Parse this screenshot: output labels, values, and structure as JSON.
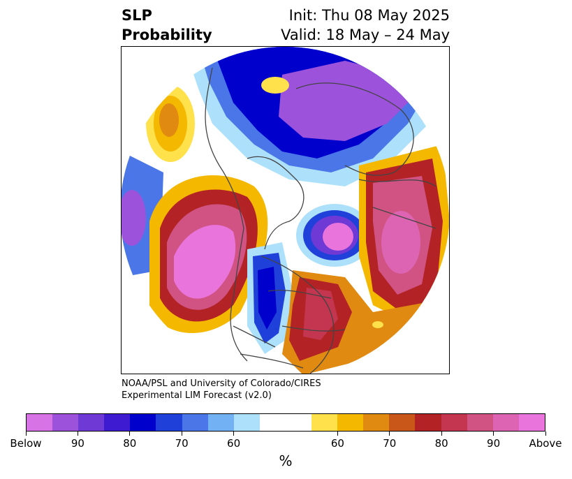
{
  "title": {
    "left_line1": "SLP",
    "left_line2": "Probability",
    "right_line1": "Init: Thu 08 May 2025",
    "right_line2": "Valid: 18 May – 24 May"
  },
  "credits": {
    "line1": "NOAA/PSL and University of Colorado/CIRES",
    "line2": "Experimental LIM Forecast (v2.0)"
  },
  "colorbar": {
    "units": "%",
    "labels": [
      "Below",
      "90",
      "80",
      "70",
      "60",
      "60",
      "70",
      "80",
      "90",
      "Above"
    ],
    "colors": [
      "#d873e6",
      "#9d52db",
      "#6f39d6",
      "#3e1bd0",
      "#0000cd",
      "#2040da",
      "#4a76e8",
      "#72b1f3",
      "#ade0fb",
      "#ffffff",
      "#ffe14b",
      "#f5b800",
      "#e08a12",
      "#c9571a",
      "#b32325",
      "#c43550",
      "#d05383",
      "#dc64b2",
      "#e974dc"
    ]
  },
  "map": {
    "projection": "north-polar-stereographic",
    "legend_colors": {
      "above_high": "#e974dc",
      "above_mid": "#c43550",
      "above_low": "#e08a12",
      "neutral": "#ffffff",
      "below_low": "#ade0fb",
      "below_mid": "#2040da",
      "below_high": "#9d52db"
    }
  }
}
